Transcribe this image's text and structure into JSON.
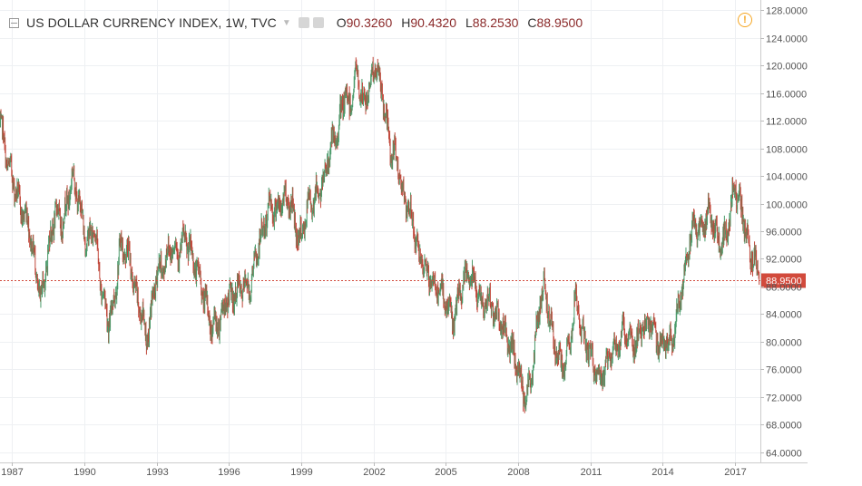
{
  "symbol": {
    "title": "US DOLLAR CURRENCY INDEX, 1W, TVC",
    "ohlc": [
      {
        "label": "O",
        "value": "90.3260"
      },
      {
        "label": "H",
        "value": "90.4320"
      },
      {
        "label": "L",
        "value": "88.2530"
      },
      {
        "label": "C",
        "value": "88.9500"
      }
    ],
    "last_price_label": "88.9500"
  },
  "icons": {
    "collapse": "collapse-box-icon",
    "dropdown": "chevron-down-icon",
    "settings": "gear-icon",
    "alert": "alert-clock-icon"
  },
  "colors": {
    "up": "#4a9a6a",
    "down": "#c0473a",
    "last_price": "#d24a3c",
    "alert": "#f5a623"
  },
  "chart_data": {
    "type": "candlestick",
    "interval": "1W",
    "x_ticks": [
      "1987",
      "1990",
      "1993",
      "1996",
      "1999",
      "2002",
      "2005",
      "2008",
      "2011",
      "2014",
      "2017"
    ],
    "x_range": [
      1986.5,
      2018.05
    ],
    "y_ticks": [
      "64.0000",
      "68.0000",
      "72.0000",
      "76.0000",
      "80.0000",
      "84.0000",
      "88.0000",
      "92.0000",
      "96.0000",
      "100.0000",
      "104.0000",
      "108.0000",
      "112.0000",
      "116.0000",
      "120.0000",
      "124.0000",
      "128.0000"
    ],
    "y_range": [
      62.5,
      129.5
    ],
    "grid": true,
    "last_price": 88.95,
    "path": [
      [
        1986.5,
        112
      ],
      [
        1986.8,
        106
      ],
      [
        1987.0,
        104
      ],
      [
        1987.3,
        100
      ],
      [
        1987.7,
        97
      ],
      [
        1988.0,
        90
      ],
      [
        1988.2,
        86
      ],
      [
        1988.5,
        93
      ],
      [
        1988.8,
        99
      ],
      [
        1989.1,
        97
      ],
      [
        1989.5,
        104
      ],
      [
        1989.8,
        100
      ],
      [
        1990.1,
        94
      ],
      [
        1990.4,
        97
      ],
      [
        1990.7,
        88
      ],
      [
        1991.0,
        83
      ],
      [
        1991.2,
        85
      ],
      [
        1991.5,
        94
      ],
      [
        1991.9,
        92
      ],
      [
        1992.1,
        87
      ],
      [
        1992.4,
        84
      ],
      [
        1992.6,
        80
      ],
      [
        1992.8,
        85
      ],
      [
        1993.0,
        90
      ],
      [
        1993.3,
        91
      ],
      [
        1993.6,
        94
      ],
      [
        1993.9,
        93
      ],
      [
        1994.2,
        95
      ],
      [
        1994.5,
        92
      ],
      [
        1994.8,
        89
      ],
      [
        1995.0,
        86
      ],
      [
        1995.3,
        82
      ],
      [
        1995.6,
        83
      ],
      [
        1995.9,
        86
      ],
      [
        1996.3,
        87
      ],
      [
        1996.6,
        88
      ],
      [
        1996.9,
        88
      ],
      [
        1997.1,
        92
      ],
      [
        1997.4,
        96
      ],
      [
        1997.7,
        100
      ],
      [
        1998.0,
        99
      ],
      [
        1998.3,
        101
      ],
      [
        1998.6,
        100
      ],
      [
        1998.8,
        96
      ],
      [
        1999.0,
        95
      ],
      [
        1999.3,
        100
      ],
      [
        1999.6,
        101
      ],
      [
        1999.9,
        103
      ],
      [
        2000.2,
        108
      ],
      [
        2000.5,
        110
      ],
      [
        2000.8,
        116
      ],
      [
        2001.0,
        114
      ],
      [
        2001.3,
        119
      ],
      [
        2001.6,
        114
      ],
      [
        2001.9,
        118
      ],
      [
        2002.1,
        120
      ],
      [
        2002.4,
        115
      ],
      [
        2002.7,
        108
      ],
      [
        2003.0,
        106
      ],
      [
        2003.3,
        100
      ],
      [
        2003.6,
        98
      ],
      [
        2003.9,
        92
      ],
      [
        2004.2,
        90
      ],
      [
        2004.5,
        88
      ],
      [
        2004.8,
        87
      ],
      [
        2005.0,
        86
      ],
      [
        2005.3,
        83
      ],
      [
        2005.6,
        87
      ],
      [
        2005.9,
        90
      ],
      [
        2006.2,
        89
      ],
      [
        2006.5,
        85
      ],
      [
        2006.8,
        86
      ],
      [
        2007.1,
        84
      ],
      [
        2007.4,
        82
      ],
      [
        2007.7,
        79
      ],
      [
        2008.0,
        76
      ],
      [
        2008.2,
        73
      ],
      [
        2008.4,
        72.5
      ],
      [
        2008.6,
        76
      ],
      [
        2008.9,
        86
      ],
      [
        2009.1,
        88
      ],
      [
        2009.3,
        84
      ],
      [
        2009.6,
        78
      ],
      [
        2009.9,
        76
      ],
      [
        2010.2,
        81
      ],
      [
        2010.4,
        87
      ],
      [
        2010.6,
        82
      ],
      [
        2010.9,
        79
      ],
      [
        2011.1,
        77
      ],
      [
        2011.4,
        74
      ],
      [
        2011.6,
        76
      ],
      [
        2011.9,
        79
      ],
      [
        2012.1,
        79
      ],
      [
        2012.4,
        82
      ],
      [
        2012.7,
        80
      ],
      [
        2012.9,
        80
      ],
      [
        2013.2,
        82
      ],
      [
        2013.5,
        83
      ],
      [
        2013.8,
        80
      ],
      [
        2014.0,
        80
      ],
      [
        2014.3,
        79.5
      ],
      [
        2014.5,
        82
      ],
      [
        2014.7,
        86
      ],
      [
        2014.9,
        90
      ],
      [
        2015.1,
        95
      ],
      [
        2015.3,
        97
      ],
      [
        2015.6,
        96
      ],
      [
        2015.9,
        99
      ],
      [
        2016.1,
        97
      ],
      [
        2016.4,
        94
      ],
      [
        2016.7,
        96
      ],
      [
        2016.9,
        101
      ],
      [
        2017.0,
        103
      ],
      [
        2017.2,
        100
      ],
      [
        2017.4,
        97
      ],
      [
        2017.6,
        93
      ],
      [
        2017.8,
        92
      ],
      [
        2018.0,
        89
      ]
    ]
  }
}
